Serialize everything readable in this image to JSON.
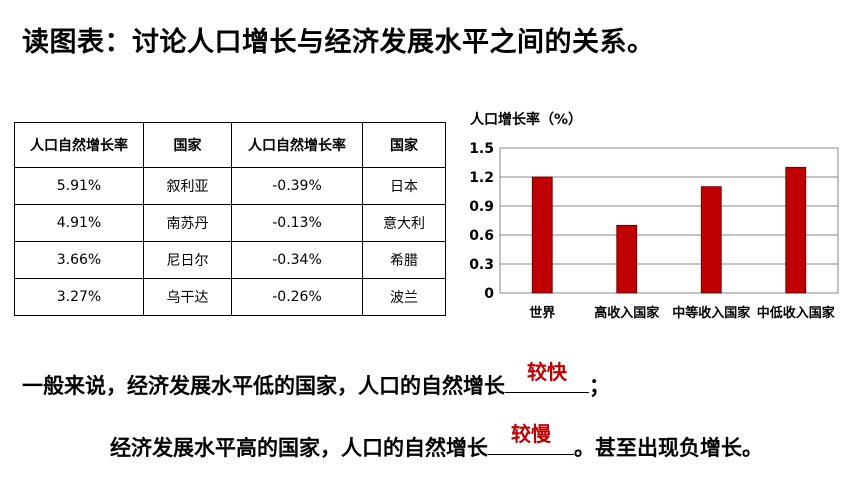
{
  "title": "读图表：讨论人口增长与经济发展水平之间的关系。",
  "table": {
    "headers": [
      "人口自然增长率",
      "国家",
      "人口自然增长率",
      "国家"
    ],
    "rows": [
      [
        "5.91%",
        "叙利亚",
        "-0.39%",
        "日本"
      ],
      [
        "4.91%",
        "南苏丹",
        "-0.13%",
        "意大利"
      ],
      [
        "3.66%",
        "尼日尔",
        "-0.34%",
        "希腊"
      ],
      [
        "3.27%",
        "乌干达",
        "-0.26%",
        "波兰"
      ]
    ]
  },
  "chart_data": {
    "type": "bar",
    "ylabel": "人口增长率（%）",
    "categories": [
      "世界",
      "高收入国家",
      "中等收入国家",
      "中低收入国家"
    ],
    "values": [
      1.2,
      0.7,
      1.1,
      1.3
    ],
    "ylim": [
      0,
      1.5
    ],
    "yticks": [
      "1.5",
      "1.2",
      "0.9",
      "0.6",
      "0.3",
      "0"
    ],
    "bar_color": "#c00000",
    "grid": true
  },
  "sentences": {
    "s1_text": "一般来说，经济发展水平低的国家，人口的自然增长",
    "s1_answer": "较快",
    "s1_end": "；",
    "s2_text": "经济发展水平高的国家，人口的自然增长",
    "s2_answer": "较慢",
    "s2_end": "。甚至出现负增长。"
  }
}
